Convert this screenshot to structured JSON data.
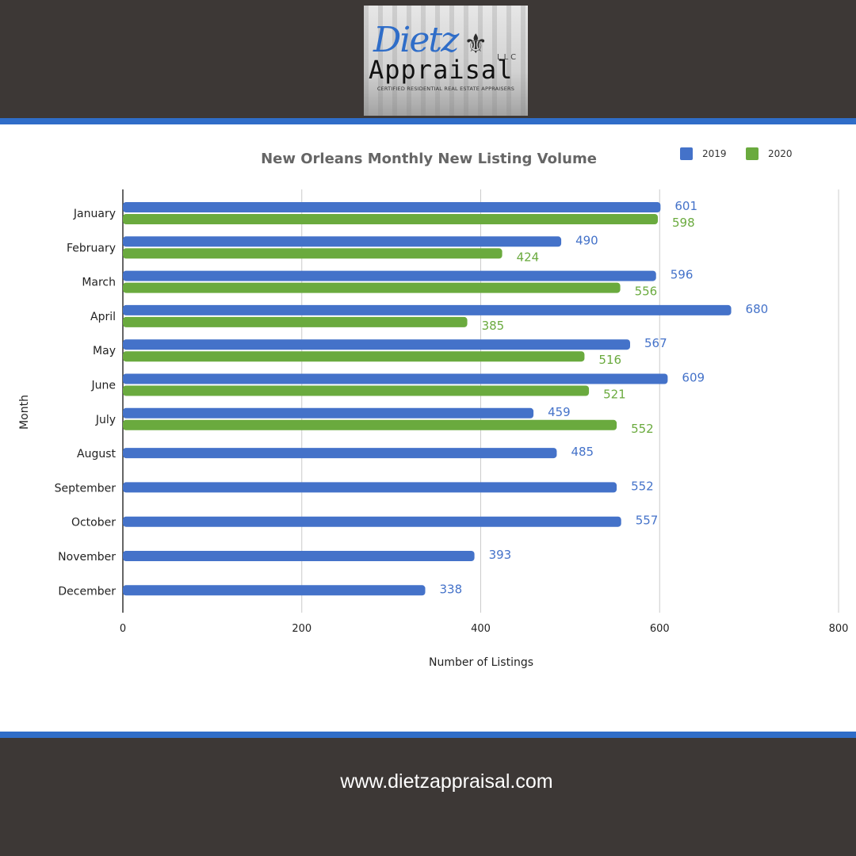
{
  "logo": {
    "script_text": "Dietz",
    "word_text": "Appraisal",
    "llc_text": "LLC",
    "tagline": "CERTIFIED RESIDENTIAL REAL ESTATE APPRAISERS"
  },
  "footer": {
    "website": "www.dietzappraisal.com"
  },
  "colors": {
    "band": "#3d3836",
    "accent": "#2f6dc8",
    "series_2019": "#4472c9",
    "series_2020": "#6aaa3e"
  },
  "chart_data": {
    "type": "bar",
    "orientation": "horizontal",
    "title": "New Orleans Monthly New Listing Volume",
    "xlabel": "Number of Listings",
    "ylabel": "Month",
    "xlim": [
      0,
      800
    ],
    "xticks": [
      "0",
      "200",
      "400",
      "600",
      "800"
    ],
    "grid": true,
    "legend_position": "top-right",
    "categories": [
      "January",
      "February",
      "March",
      "April",
      "May",
      "June",
      "July",
      "August",
      "September",
      "October",
      "November",
      "December"
    ],
    "series": [
      {
        "name": "2019",
        "values": [
          601,
          490,
          596,
          680,
          567,
          609,
          459,
          485,
          552,
          557,
          393,
          338
        ]
      },
      {
        "name": "2020",
        "values": [
          598,
          424,
          556,
          385,
          516,
          521,
          552,
          null,
          null,
          null,
          null,
          null
        ]
      }
    ]
  }
}
